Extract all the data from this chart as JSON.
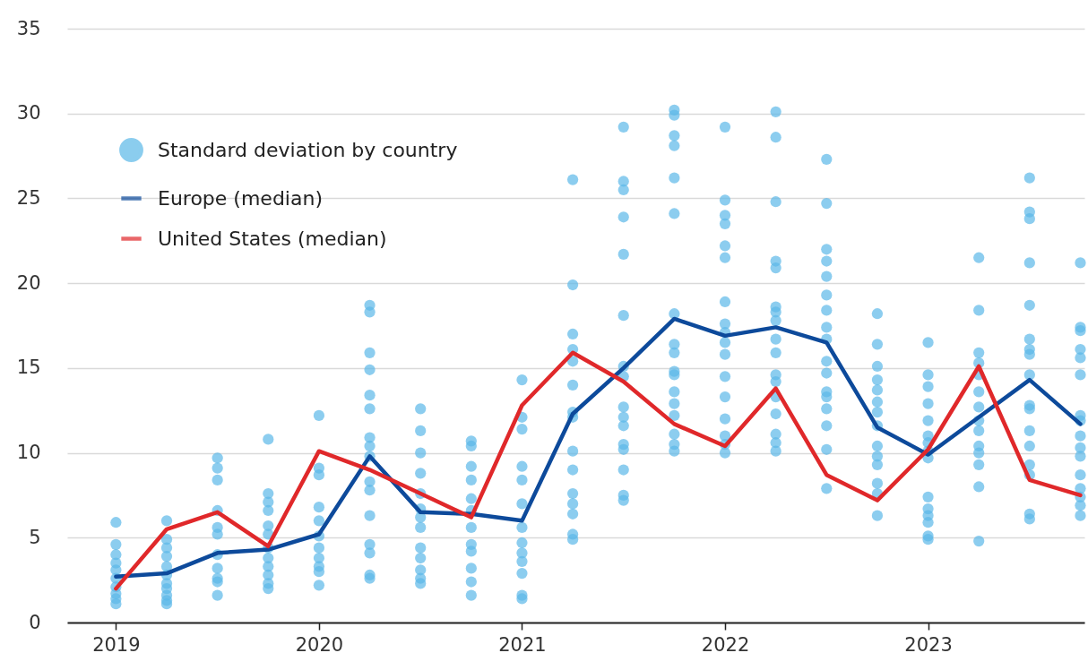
{
  "chart_data": {
    "type": "line",
    "x": [
      2019,
      2019.25,
      2019.5,
      2019.75,
      2020,
      2020.25,
      2020.5,
      2020.75,
      2021,
      2021.25,
      2021.5,
      2021.75,
      2022,
      2022.25,
      2022.5,
      2022.75,
      2023,
      2023.25,
      2023.5,
      2023.75
    ],
    "xlim": [
      2018.76,
      2023.77
    ],
    "xticks": [
      2019,
      2020,
      2021,
      2022,
      2023
    ],
    "ylim": [
      0,
      35
    ],
    "yticks": [
      0,
      5,
      10,
      15,
      20,
      25,
      30,
      35
    ],
    "grid": "y",
    "legend": "top left",
    "series": [
      {
        "type": "scatter",
        "name": "Standard deviation by country",
        "color": "#5bb8e8",
        "marker": "circle",
        "x": [
          2019,
          2019,
          2019,
          2019,
          2019,
          2019,
          2019,
          2019,
          2019,
          2019,
          2019.25,
          2019.25,
          2019.25,
          2019.25,
          2019.25,
          2019.25,
          2019.25,
          2019.25,
          2019.25,
          2019.25,
          2019.25,
          2019.5,
          2019.5,
          2019.5,
          2019.5,
          2019.5,
          2019.5,
          2019.5,
          2019.5,
          2019.5,
          2019.5,
          2019.5,
          2019.75,
          2019.75,
          2019.75,
          2019.75,
          2019.75,
          2019.75,
          2019.75,
          2019.75,
          2019.75,
          2019.75,
          2019.75,
          2019.75,
          2020,
          2020,
          2020,
          2020,
          2020,
          2020,
          2020,
          2020,
          2020,
          2020,
          2020,
          2020.25,
          2020.25,
          2020.25,
          2020.25,
          2020.25,
          2020.25,
          2020.25,
          2020.25,
          2020.25,
          2020.25,
          2020.25,
          2020.25,
          2020.25,
          2020.25,
          2020.25,
          2020.25,
          2020.5,
          2020.5,
          2020.5,
          2020.5,
          2020.5,
          2020.5,
          2020.5,
          2020.5,
          2020.5,
          2020.5,
          2020.5,
          2020.5,
          2020.5,
          2020.75,
          2020.75,
          2020.75,
          2020.75,
          2020.75,
          2020.75,
          2020.75,
          2020.75,
          2020.75,
          2020.75,
          2020.75,
          2020.75,
          2021,
          2021,
          2021,
          2021,
          2021,
          2021,
          2021,
          2021,
          2021,
          2021,
          2021,
          2021,
          2021,
          2021.25,
          2021.25,
          2021.25,
          2021.25,
          2021.25,
          2021.25,
          2021.25,
          2021.25,
          2021.25,
          2021.25,
          2021.25,
          2021.25,
          2021.25,
          2021.25,
          2021.25,
          2021.5,
          2021.5,
          2021.5,
          2021.5,
          2021.5,
          2021.5,
          2021.5,
          2021.5,
          2021.5,
          2021.5,
          2021.5,
          2021.5,
          2021.5,
          2021.5,
          2021.5,
          2021.5,
          2021.75,
          2021.75,
          2021.75,
          2021.75,
          2021.75,
          2021.75,
          2021.75,
          2021.75,
          2021.75,
          2021.75,
          2021.75,
          2021.75,
          2021.75,
          2021.75,
          2021.75,
          2021.75,
          2021.75,
          2022,
          2022,
          2022,
          2022,
          2022,
          2022,
          2022,
          2022,
          2022,
          2022,
          2022,
          2022,
          2022,
          2022,
          2022,
          2022,
          2022,
          2022.25,
          2022.25,
          2022.25,
          2022.25,
          2022.25,
          2022.25,
          2022.25,
          2022.25,
          2022.25,
          2022.25,
          2022.25,
          2022.25,
          2022.25,
          2022.25,
          2022.25,
          2022.25,
          2022.25,
          2022.5,
          2022.5,
          2022.5,
          2022.5,
          2022.5,
          2022.5,
          2022.5,
          2022.5,
          2022.5,
          2022.5,
          2022.5,
          2022.5,
          2022.5,
          2022.5,
          2022.5,
          2022.5,
          2022.5,
          2022.75,
          2022.75,
          2022.75,
          2022.75,
          2022.75,
          2022.75,
          2022.75,
          2022.75,
          2022.75,
          2022.75,
          2022.75,
          2022.75,
          2022.75,
          2022.75,
          2023,
          2023,
          2023,
          2023,
          2023,
          2023,
          2023,
          2023,
          2023,
          2023,
          2023,
          2023,
          2023,
          2023,
          2023,
          2023.25,
          2023.25,
          2023.25,
          2023.25,
          2023.25,
          2023.25,
          2023.25,
          2023.25,
          2023.25,
          2023.25,
          2023.25,
          2023.25,
          2023.25,
          2023.25,
          2023.5,
          2023.5,
          2023.5,
          2023.5,
          2023.5,
          2023.5,
          2023.5,
          2023.5,
          2023.5,
          2023.5,
          2023.5,
          2023.5,
          2023.5,
          2023.5,
          2023.5,
          2023.5,
          2023.5,
          2023.75,
          2023.75,
          2023.75,
          2023.75,
          2023.75,
          2023.75,
          2023.75,
          2023.75,
          2023.75,
          2023.75,
          2023.75,
          2023.75,
          2023.75,
          2023.75,
          2023.75,
          2023.75
        ],
        "values": [
          5.9,
          4.6,
          4.0,
          3.5,
          3.1,
          2.6,
          2.1,
          1.7,
          1.4,
          1.1,
          6.0,
          4.9,
          4.4,
          3.9,
          3.3,
          2.8,
          2.3,
          2.0,
          1.6,
          1.3,
          1.1,
          9.7,
          9.1,
          8.4,
          6.6,
          5.6,
          5.2,
          4.0,
          3.2,
          2.6,
          2.4,
          1.6,
          10.8,
          7.6,
          7.1,
          6.6,
          5.7,
          5.2,
          4.4,
          3.8,
          3.3,
          2.8,
          2.3,
          2.0,
          12.2,
          9.1,
          8.7,
          6.8,
          6.0,
          5.1,
          4.4,
          3.8,
          3.3,
          3.0,
          2.2,
          18.7,
          18.3,
          15.9,
          14.9,
          13.4,
          12.6,
          10.9,
          10.4,
          9.8,
          8.3,
          7.8,
          6.3,
          4.6,
          4.1,
          2.8,
          2.6,
          12.6,
          11.3,
          10.0,
          8.8,
          7.6,
          6.7,
          6.2,
          5.6,
          4.4,
          3.8,
          3.1,
          2.6,
          2.3,
          10.7,
          10.4,
          9.2,
          8.4,
          7.3,
          6.6,
          5.6,
          4.6,
          4.2,
          3.2,
          2.4,
          1.6,
          14.3,
          12.1,
          11.4,
          9.2,
          8.4,
          7.0,
          5.6,
          4.7,
          4.1,
          3.6,
          2.9,
          1.6,
          1.4,
          26.1,
          19.9,
          17.0,
          16.1,
          15.4,
          14.0,
          12.4,
          12.1,
          10.1,
          9.0,
          7.6,
          7.0,
          6.4,
          5.2,
          4.9,
          29.2,
          26.0,
          25.5,
          23.9,
          21.7,
          18.1,
          15.1,
          14.5,
          12.7,
          12.1,
          11.6,
          10.5,
          10.2,
          9.0,
          7.5,
          7.2,
          30.2,
          29.9,
          28.7,
          28.1,
          26.2,
          24.1,
          18.2,
          16.4,
          15.9,
          14.8,
          14.6,
          13.6,
          12.9,
          12.2,
          11.1,
          10.5,
          10.1,
          29.2,
          24.9,
          24.0,
          23.5,
          22.2,
          21.5,
          18.9,
          17.6,
          17.1,
          16.5,
          15.8,
          14.5,
          13.3,
          12.0,
          11.0,
          10.5,
          10.0,
          30.1,
          28.6,
          24.8,
          21.3,
          20.9,
          18.6,
          18.3,
          17.8,
          16.7,
          15.9,
          14.6,
          14.2,
          13.3,
          12.3,
          11.1,
          10.6,
          10.1,
          27.3,
          24.7,
          22.0,
          21.3,
          20.4,
          19.3,
          18.4,
          17.4,
          16.7,
          15.4,
          14.7,
          13.6,
          13.3,
          12.6,
          11.6,
          10.2,
          7.9,
          18.2,
          16.4,
          15.1,
          14.3,
          13.7,
          13.0,
          12.4,
          11.6,
          10.4,
          9.8,
          9.3,
          8.2,
          7.6,
          6.3,
          16.5,
          14.6,
          13.9,
          12.9,
          11.9,
          11.0,
          10.6,
          10.1,
          9.7,
          7.4,
          6.7,
          6.3,
          5.9,
          5.1,
          4.9,
          21.5,
          18.4,
          15.9,
          15.3,
          14.6,
          13.6,
          12.7,
          11.9,
          11.3,
          10.4,
          10.0,
          9.3,
          8.0,
          4.8,
          26.2,
          24.2,
          23.8,
          21.2,
          18.7,
          16.7,
          16.1,
          15.8,
          14.6,
          12.8,
          12.6,
          11.3,
          10.4,
          9.3,
          8.7,
          6.4,
          6.1,
          21.2,
          17.4,
          17.2,
          16.1,
          15.6,
          14.6,
          12.2,
          11.9,
          11.0,
          10.3,
          9.8,
          8.7,
          7.9,
          7.4,
          6.9,
          6.3
        ]
      },
      {
        "name": "Europe (median)",
        "color": "#0d4a9b",
        "values": [
          2.7,
          2.9,
          4.1,
          4.3,
          5.2,
          9.8,
          6.5,
          6.4,
          6.0,
          12.3,
          15.0,
          17.9,
          16.9,
          17.4,
          16.5,
          11.5,
          9.9,
          12.1,
          14.3,
          11.7
        ]
      },
      {
        "name": "United States (median)",
        "color": "#e0282a",
        "values": [
          2.0,
          5.5,
          6.5,
          4.5,
          10.1,
          9.0,
          7.6,
          6.2,
          12.8,
          15.9,
          14.2,
          11.7,
          10.4,
          13.8,
          8.7,
          7.2,
          10.2,
          15.1,
          8.4,
          7.5
        ]
      }
    ]
  }
}
